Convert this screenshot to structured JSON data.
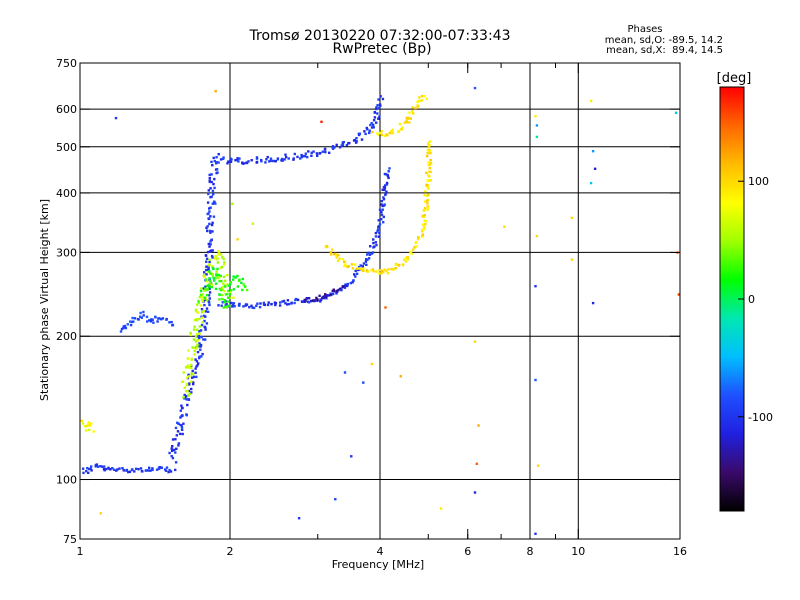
{
  "chart_data": {
    "type": "scatter",
    "title": "Tromsø 20130220 07:32:00-07:33:43",
    "subtitle": "RwPretec (Bp)",
    "xlabel": "Frequency [MHz]",
    "ylabel": "Stationary phase Virtual Height [km]",
    "x_scale": "log",
    "y_scale": "log",
    "xlim": [
      1,
      16
    ],
    "ylim": [
      75,
      750
    ],
    "x_ticks": [
      1,
      2,
      4,
      6,
      8,
      10,
      16
    ],
    "x_tick_labels": [
      "1",
      "2",
      "4",
      "6",
      "8",
      "10",
      "16"
    ],
    "x_gridlines": [
      2,
      4,
      8,
      10
    ],
    "x_minor_ticks": [
      3,
      5,
      6,
      7,
      9
    ],
    "y_ticks": [
      75,
      100,
      200,
      300,
      400,
      500,
      600,
      750
    ],
    "y_tick_labels": [
      "75",
      "100",
      "200",
      "300",
      "400",
      "500",
      "600",
      "750"
    ],
    "y_gridlines": [
      100,
      200,
      300,
      400,
      500,
      600
    ],
    "grid": true,
    "stats": {
      "heading": "Phases",
      "line_o": "mean, sd,O: -89.5, 14.2",
      "line_x": "mean, sd,X:  89.4, 14.5"
    },
    "colorbar": {
      "label": "[deg]",
      "min": -180,
      "max": 180,
      "ticks": [
        100,
        0,
        -100
      ],
      "tick_labels": [
        "100",
        "0",
        "-100"
      ]
    },
    "color_stops": [
      "#000000",
      "#3a0a6a",
      "#2020e0",
      "#1e50ff",
      "#00bfff",
      "#00e8b0",
      "#00ff00",
      "#a0ff00",
      "#ffff00",
      "#ffbb00",
      "#ff6600",
      "#ff0000"
    ],
    "series": [
      {
        "trace": "lowE-O",
        "phase": -100,
        "spread": 2.5,
        "points": [
          [
            1.01,
            105
          ],
          [
            1.03,
            104
          ],
          [
            1.05,
            106
          ],
          [
            1.08,
            107
          ],
          [
            1.1,
            106
          ],
          [
            1.13,
            105
          ],
          [
            1.17,
            105
          ],
          [
            1.22,
            105
          ],
          [
            1.27,
            105
          ],
          [
            1.32,
            105
          ],
          [
            1.37,
            105
          ],
          [
            1.42,
            105
          ],
          [
            1.47,
            105
          ],
          [
            1.52,
            105
          ],
          [
            1.55,
            104
          ]
        ]
      },
      {
        "trace": "lowE-X",
        "phase": -90,
        "spread": 3,
        "points": [
          [
            1.2,
            205
          ],
          [
            1.25,
            212
          ],
          [
            1.3,
            220
          ],
          [
            1.33,
            222
          ],
          [
            1.36,
            218
          ],
          [
            1.4,
            215
          ],
          [
            1.45,
            220
          ],
          [
            1.5,
            215
          ],
          [
            1.53,
            210
          ]
        ]
      },
      {
        "trace": "lowE-stub",
        "phase": 80,
        "spread": 4,
        "points": [
          [
            1.02,
            128
          ],
          [
            1.03,
            133
          ],
          [
            1.04,
            130
          ],
          [
            1.05,
            125
          ]
        ]
      },
      {
        "trace": "F-rise-O",
        "phase": -100,
        "spread": 4,
        "points": [
          [
            1.53,
            110
          ],
          [
            1.56,
            118
          ],
          [
            1.6,
            135
          ],
          [
            1.64,
            150
          ],
          [
            1.68,
            165
          ],
          [
            1.72,
            180
          ],
          [
            1.75,
            200
          ],
          [
            1.78,
            225
          ],
          [
            1.8,
            250
          ],
          [
            1.81,
            280
          ],
          [
            1.82,
            310
          ],
          [
            1.83,
            350
          ],
          [
            1.84,
            400
          ],
          [
            1.85,
            440
          ],
          [
            1.86,
            470
          ],
          [
            1.88,
            485
          ]
        ]
      },
      {
        "trace": "F-rise-mixed",
        "phase": 60,
        "spread": 5,
        "points": [
          [
            1.62,
            150
          ],
          [
            1.67,
            180
          ],
          [
            1.72,
            215
          ],
          [
            1.77,
            245
          ],
          [
            1.82,
            270
          ],
          [
            1.86,
            290
          ],
          [
            1.9,
            300
          ],
          [
            1.93,
            265
          ],
          [
            1.97,
            245
          ],
          [
            2.0,
            240
          ]
        ]
      },
      {
        "trace": "F2-O",
        "phase": -100,
        "spread": 3,
        "points": [
          [
            1.9,
            470
          ],
          [
            2.0,
            468
          ],
          [
            2.2,
            468
          ],
          [
            2.4,
            470
          ],
          [
            2.6,
            475
          ],
          [
            2.8,
            480
          ],
          [
            3.0,
            485
          ],
          [
            3.2,
            495
          ],
          [
            3.4,
            505
          ],
          [
            3.6,
            520
          ],
          [
            3.8,
            545
          ],
          [
            3.9,
            570
          ],
          [
            3.95,
            595
          ],
          [
            4.0,
            620
          ],
          [
            4.05,
            640
          ]
        ]
      },
      {
        "trace": "F2-X",
        "phase": 95,
        "spread": 3,
        "points": [
          [
            3.9,
            530
          ],
          [
            4.1,
            535
          ],
          [
            4.3,
            540
          ],
          [
            4.5,
            560
          ],
          [
            4.6,
            580
          ],
          [
            4.7,
            600
          ],
          [
            4.8,
            620
          ],
          [
            4.9,
            640
          ],
          [
            4.95,
            648
          ]
        ]
      },
      {
        "trace": "F1-O",
        "phase": -100,
        "spread": 2.5,
        "points": [
          [
            1.9,
            235
          ],
          [
            2.1,
            232
          ],
          [
            2.3,
            232
          ],
          [
            2.5,
            235
          ],
          [
            2.7,
            237
          ],
          [
            2.9,
            238
          ],
          [
            3.1,
            240
          ],
          [
            3.3,
            248
          ],
          [
            3.5,
            262
          ],
          [
            3.7,
            282
          ],
          [
            3.9,
            312
          ],
          [
            4.0,
            340
          ],
          [
            4.05,
            380
          ],
          [
            4.1,
            420
          ],
          [
            4.15,
            450
          ]
        ]
      },
      {
        "trace": "F1-X",
        "phase": 95,
        "spread": 2.5,
        "points": [
          [
            3.1,
            310
          ],
          [
            3.2,
            300
          ],
          [
            3.4,
            285
          ],
          [
            3.6,
            280
          ],
          [
            3.8,
            275
          ],
          [
            4.0,
            272
          ],
          [
            4.2,
            276
          ],
          [
            4.4,
            285
          ],
          [
            4.6,
            300
          ],
          [
            4.8,
            320
          ],
          [
            4.9,
            350
          ],
          [
            4.95,
            390
          ],
          [
            5.0,
            430
          ],
          [
            5.02,
            480
          ],
          [
            5.03,
            520
          ]
        ]
      },
      {
        "trace": "F1-dark",
        "phase": -130,
        "spread": 2,
        "points": [
          [
            2.8,
            238
          ],
          [
            2.95,
            240
          ],
          [
            3.1,
            244
          ],
          [
            3.25,
            250
          ],
          [
            3.4,
            256
          ]
        ]
      },
      {
        "trace": "F1-cusp-mixed",
        "phase": 20,
        "spread": 5,
        "points": [
          [
            1.75,
            240
          ],
          [
            1.8,
            255
          ],
          [
            1.85,
            275
          ],
          [
            1.9,
            260
          ],
          [
            1.95,
            235
          ],
          [
            2.05,
            265
          ],
          [
            2.15,
            250
          ]
        ]
      },
      {
        "trace": "noise",
        "phase": 0,
        "spread": 0,
        "points": [
          [
            1.18,
            575,
            -100
          ],
          [
            1.87,
            655,
            120
          ],
          [
            1.1,
            85,
            100
          ],
          [
            1.97,
            230,
            40
          ],
          [
            2.02,
            380,
            50
          ],
          [
            2.07,
            320,
            100
          ],
          [
            2.22,
            345,
            60
          ],
          [
            2.75,
            83,
            -100
          ],
          [
            3.05,
            565,
            170
          ],
          [
            3.25,
            91,
            -90
          ],
          [
            3.4,
            168,
            -90
          ],
          [
            3.5,
            112,
            -100
          ],
          [
            3.7,
            160,
            -90
          ],
          [
            3.85,
            175,
            100
          ],
          [
            4.1,
            230,
            150
          ],
          [
            4.4,
            165,
            120
          ],
          [
            5.3,
            87,
            90
          ],
          [
            6.2,
            665,
            -80
          ],
          [
            6.2,
            195,
            100
          ],
          [
            6.2,
            94,
            -110
          ],
          [
            6.25,
            108,
            150
          ],
          [
            6.3,
            130,
            120
          ],
          [
            7.1,
            340,
            100
          ],
          [
            8.2,
            580,
            90
          ],
          [
            8.25,
            555,
            -60
          ],
          [
            8.25,
            525,
            -10
          ],
          [
            8.2,
            255,
            -100
          ],
          [
            8.25,
            325,
            100
          ],
          [
            8.2,
            162,
            -80
          ],
          [
            8.3,
            107,
            100
          ],
          [
            8.2,
            77,
            -100
          ],
          [
            9.7,
            355,
            100
          ],
          [
            9.7,
            290,
            100
          ],
          [
            10.6,
            625,
            90
          ],
          [
            10.7,
            490,
            -60
          ],
          [
            10.8,
            450,
            -120
          ],
          [
            10.6,
            420,
            -40
          ],
          [
            10.7,
            235,
            -110
          ],
          [
            15.7,
            590,
            -40
          ],
          [
            15.8,
            300,
            150
          ],
          [
            15.9,
            245,
            160
          ]
        ]
      }
    ]
  }
}
